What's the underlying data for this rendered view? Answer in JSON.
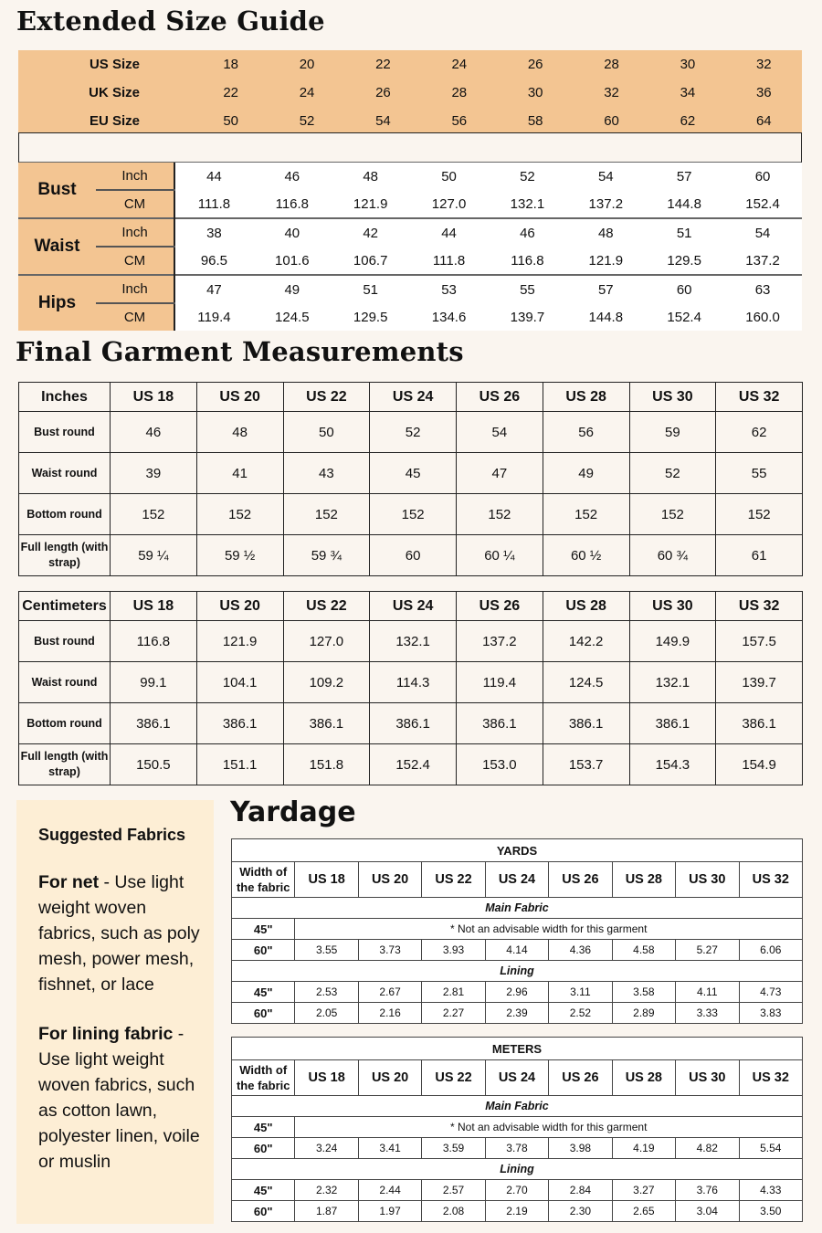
{
  "titles": {
    "size_guide": "Extended Size Guide",
    "garment": "Final Garment Measurements",
    "yardage": "Yardage"
  },
  "colors": {
    "background": "#faf5ef",
    "orange": "#f3c592",
    "fabric_box": "#fdeed5"
  },
  "size_guide": {
    "rows": [
      {
        "label": "US Size",
        "values": [
          "18",
          "20",
          "22",
          "24",
          "26",
          "28",
          "30",
          "32"
        ]
      },
      {
        "label": "UK Size",
        "values": [
          "22",
          "24",
          "26",
          "28",
          "30",
          "32",
          "34",
          "36"
        ]
      },
      {
        "label": "EU Size",
        "values": [
          "50",
          "52",
          "54",
          "56",
          "58",
          "60",
          "62",
          "64"
        ]
      }
    ],
    "body": [
      {
        "name": "Bust",
        "inch_label": "Inch",
        "cm_label": "CM",
        "inch": [
          "44",
          "46",
          "48",
          "50",
          "52",
          "54",
          "57",
          "60"
        ],
        "cm": [
          "111.8",
          "116.8",
          "121.9",
          "127.0",
          "132.1",
          "137.2",
          "144.8",
          "152.4"
        ]
      },
      {
        "name": "Waist",
        "inch_label": "Inch",
        "cm_label": "CM",
        "inch": [
          "38",
          "40",
          "42",
          "44",
          "46",
          "48",
          "51",
          "54"
        ],
        "cm": [
          "96.5",
          "101.6",
          "106.7",
          "111.8",
          "116.8",
          "121.9",
          "129.5",
          "137.2"
        ]
      },
      {
        "name": "Hips",
        "inch_label": "Inch",
        "cm_label": "CM",
        "inch": [
          "47",
          "49",
          "51",
          "53",
          "55",
          "57",
          "60",
          "63"
        ],
        "cm": [
          "119.4",
          "124.5",
          "129.5",
          "134.6",
          "139.7",
          "144.8",
          "152.4",
          "160.0"
        ]
      }
    ]
  },
  "garment": {
    "sizes": [
      "US 18",
      "US 20",
      "US 22",
      "US 24",
      "US 26",
      "US 28",
      "US 30",
      "US 32"
    ],
    "tables": [
      {
        "unit": "Inches",
        "rows": [
          {
            "label": "Bust round",
            "values": [
              "46",
              "48",
              "50",
              "52",
              "54",
              "56",
              "59",
              "62"
            ]
          },
          {
            "label": "Waist round",
            "values": [
              "39",
              "41",
              "43",
              "45",
              "47",
              "49",
              "52",
              "55"
            ]
          },
          {
            "label": "Bottom round",
            "values": [
              "152",
              "152",
              "152",
              "152",
              "152",
              "152",
              "152",
              "152"
            ]
          },
          {
            "label": "Full length (with strap)",
            "values": [
              "59 ¼",
              "59 ½",
              "59 ¾",
              "60",
              "60 ¼",
              "60 ½",
              "60 ¾",
              "61"
            ]
          }
        ]
      },
      {
        "unit": "Centimeters",
        "rows": [
          {
            "label": "Bust round",
            "values": [
              "116.8",
              "121.9",
              "127.0",
              "132.1",
              "137.2",
              "142.2",
              "149.9",
              "157.5"
            ]
          },
          {
            "label": "Waist round",
            "values": [
              "99.1",
              "104.1",
              "109.2",
              "114.3",
              "119.4",
              "124.5",
              "132.1",
              "139.7"
            ]
          },
          {
            "label": "Bottom round",
            "values": [
              "386.1",
              "386.1",
              "386.1",
              "386.1",
              "386.1",
              "386.1",
              "386.1",
              "386.1"
            ]
          },
          {
            "label": "Full length (with strap)",
            "values": [
              "150.5",
              "151.1",
              "151.8",
              "152.4",
              "153.0",
              "153.7",
              "154.3",
              "154.9"
            ]
          }
        ]
      }
    ]
  },
  "fabrics": {
    "heading": "Suggested Fabrics",
    "items": [
      {
        "label": "For net",
        "text": " - Use light weight woven fabrics, such as poly mesh, power mesh, fishnet, or lace"
      },
      {
        "label": "For lining fabric",
        "text": " - Use light weight woven fabrics, such as cotton lawn, polyester linen, voile or muslin"
      }
    ]
  },
  "yardage": {
    "width_label": "Width of the fabric",
    "sizes": [
      "US 18",
      "US 20",
      "US 22",
      "US 24",
      "US 26",
      "US 28",
      "US 30",
      "US 32"
    ],
    "main_label": "Main Fabric",
    "lining_label": "Lining",
    "note": "* Not an advisable width for this garment",
    "tables": [
      {
        "title": "YARDS",
        "main_45": "45\"",
        "main_60": {
          "width": "60\"",
          "values": [
            "3.55",
            "3.73",
            "3.93",
            "4.14",
            "4.36",
            "4.58",
            "5.27",
            "6.06"
          ]
        },
        "lining": [
          {
            "width": "45\"",
            "values": [
              "2.53",
              "2.67",
              "2.81",
              "2.96",
              "3.11",
              "3.58",
              "4.11",
              "4.73"
            ]
          },
          {
            "width": "60\"",
            "values": [
              "2.05",
              "2.16",
              "2.27",
              "2.39",
              "2.52",
              "2.89",
              "3.33",
              "3.83"
            ]
          }
        ]
      },
      {
        "title": "METERS",
        "main_45": "45\"",
        "main_60": {
          "width": "60\"",
          "values": [
            "3.24",
            "3.41",
            "3.59",
            "3.78",
            "3.98",
            "4.19",
            "4.82",
            "5.54"
          ]
        },
        "lining": [
          {
            "width": "45\"",
            "values": [
              "2.32",
              "2.44",
              "2.57",
              "2.70",
              "2.84",
              "3.27",
              "3.76",
              "4.33"
            ]
          },
          {
            "width": "60\"",
            "values": [
              "1.87",
              "1.97",
              "2.08",
              "2.19",
              "2.30",
              "2.65",
              "3.04",
              "3.50"
            ]
          }
        ]
      }
    ]
  }
}
